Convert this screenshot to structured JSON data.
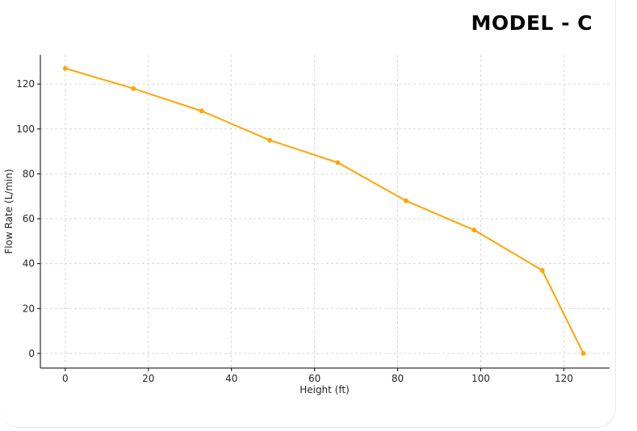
{
  "chart_data": {
    "type": "line",
    "title": "MODEL - C",
    "xlabel": "Height (ft)",
    "ylabel": "Flow Rate (L/min)",
    "xlim": [
      -6,
      131
    ],
    "ylim": [
      -6.5,
      133
    ],
    "x_ticks": [
      0,
      20,
      40,
      60,
      80,
      100,
      120
    ],
    "y_ticks": [
      0,
      20,
      40,
      60,
      80,
      100,
      120
    ],
    "grid": true,
    "legend": "none",
    "series": [
      {
        "color": "#FFA500",
        "x": [
          0,
          16.4,
          32.8,
          49.2,
          65.6,
          82,
          98.4,
          114.8,
          124.7
        ],
        "y": [
          127,
          118,
          108,
          95,
          85,
          68,
          55,
          37,
          0
        ]
      }
    ]
  }
}
